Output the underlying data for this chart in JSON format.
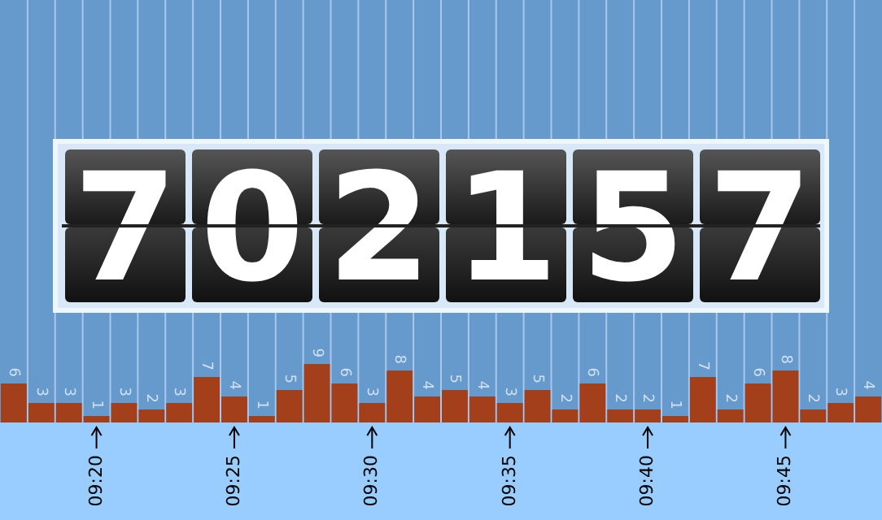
{
  "chart_data": {
    "type": "bar",
    "categories": [
      null,
      null,
      null,
      "09:20",
      null,
      null,
      null,
      null,
      "09:25",
      null,
      null,
      null,
      null,
      "09:30",
      null,
      null,
      null,
      null,
      "09:35",
      null,
      null,
      null,
      null,
      "09:40",
      null,
      null,
      null,
      null,
      "09:45",
      null,
      null,
      null
    ],
    "values": [
      6,
      3,
      3,
      1,
      3,
      2,
      3,
      7,
      4,
      1,
      5,
      9,
      6,
      3,
      8,
      4,
      5,
      4,
      3,
      5,
      2,
      6,
      2,
      2,
      1,
      7,
      2,
      6,
      8,
      2,
      3,
      4
    ],
    "color": "#a33f1b",
    "data_labels": true,
    "grid": "x",
    "annotations": [
      "702157"
    ]
  }
}
